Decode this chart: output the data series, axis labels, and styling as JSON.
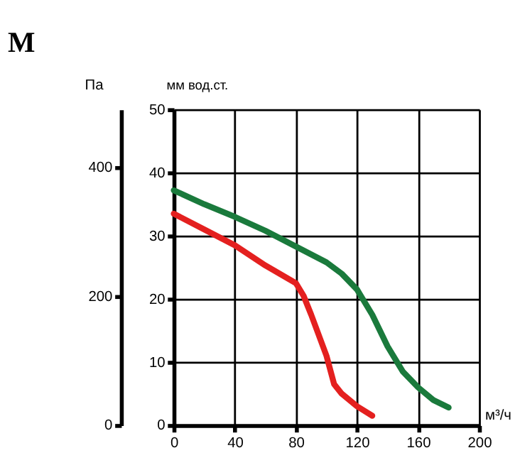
{
  "chart_data": {
    "type": "line",
    "title": "M",
    "xlabel": "м³/ч",
    "ylabel": "мм вод.ст.",
    "y2label": "Па",
    "xlim": [
      0,
      200
    ],
    "xticks": [
      0,
      40,
      80,
      120,
      160,
      200
    ],
    "ylim": [
      0,
      50
    ],
    "yticks": [
      0,
      10,
      20,
      30,
      40,
      50
    ],
    "y2lim": [
      0,
      490
    ],
    "y2ticks": [
      0,
      200,
      400
    ],
    "grid": true,
    "line_style": "solid",
    "marker": "none",
    "series": [
      {
        "color": "#1a7a3c",
        "x": [
          0,
          20,
          40,
          60,
          80,
          100,
          110,
          120,
          130,
          140,
          150,
          160,
          170,
          180
        ],
        "values": [
          37.2,
          35,
          33,
          30.8,
          28.3,
          25.8,
          24,
          21.5,
          17.5,
          12.5,
          8.5,
          6,
          4,
          2.8
        ]
      },
      {
        "color": "#e4201f",
        "x": [
          0,
          20,
          40,
          60,
          80,
          85,
          90,
          100,
          105,
          110,
          120,
          130
        ],
        "values": [
          33.5,
          31,
          28.5,
          25.3,
          22.5,
          20.5,
          17.5,
          11,
          6.5,
          5,
          3,
          1.5
        ]
      }
    ]
  }
}
